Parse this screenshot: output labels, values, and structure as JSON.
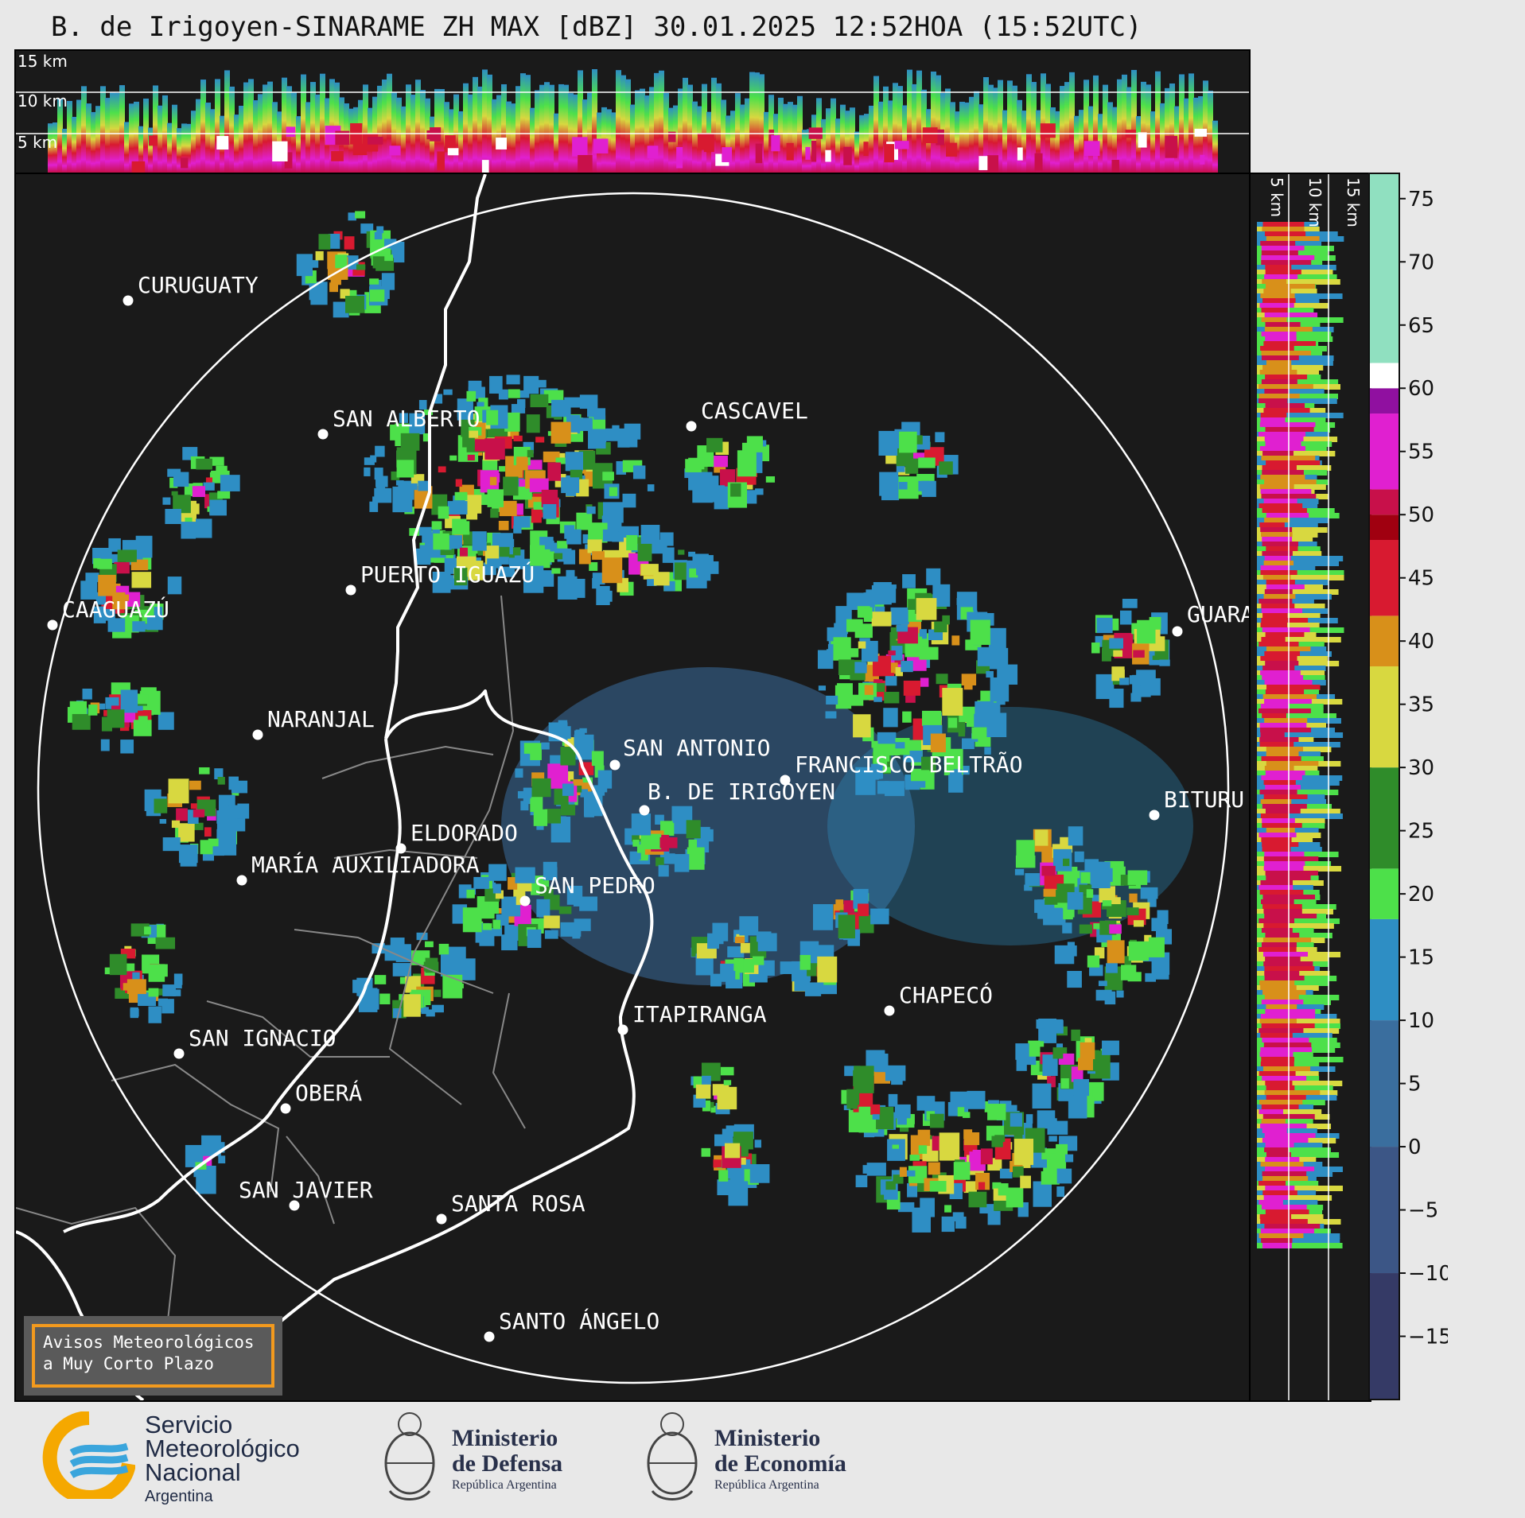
{
  "title": "B. de Irigoyen-SINARAME ZH MAX [dBZ] 30.01.2025 12:52HOA (15:52UTC)",
  "top_panel": {
    "height_labels": [
      "15 km",
      "10 km",
      "5 km"
    ]
  },
  "side_panel": {
    "height_labels": [
      "5 km",
      "10 km",
      "15 km"
    ]
  },
  "cities": [
    {
      "name": "CURUGUATY"
    },
    {
      "name": "SAN ALBERTO"
    },
    {
      "name": "CASCAVEL"
    },
    {
      "name": "CAAGUAZÚ"
    },
    {
      "name": "PUERTO IGUAZÚ"
    },
    {
      "name": "GUARA"
    },
    {
      "name": "NARANJAL"
    },
    {
      "name": "SAN ANTONIO"
    },
    {
      "name": "FRANCISCO BELTRÃO"
    },
    {
      "name": "B. DE IRIGOYEN"
    },
    {
      "name": "BITURU"
    },
    {
      "name": "ELDORADO"
    },
    {
      "name": "MARÍA AUXILIADORA"
    },
    {
      "name": "SAN PEDRO"
    },
    {
      "name": "CHAPECÓ"
    },
    {
      "name": "ITAPIRANGA"
    },
    {
      "name": "SAN IGNACIO"
    },
    {
      "name": "OBERÁ"
    },
    {
      "name": "SAN JAVIER"
    },
    {
      "name": "SANTA ROSA"
    },
    {
      "name": "SANTO ÁNGELO"
    }
  ],
  "colorbar": {
    "unit": "dBZ",
    "min": -20,
    "max": 77,
    "ticks": [
      "75",
      "70",
      "65",
      "60",
      "55",
      "50",
      "45",
      "40",
      "35",
      "30",
      "25",
      "20",
      "15",
      "10",
      "5",
      "0",
      "−5",
      "−10",
      "−15"
    ],
    "tick_values": [
      75,
      70,
      65,
      60,
      55,
      50,
      45,
      40,
      35,
      30,
      25,
      20,
      15,
      10,
      5,
      0,
      -5,
      -10,
      -15
    ],
    "stops": [
      {
        "from": -20,
        "to": -10,
        "color": "#353a66"
      },
      {
        "from": -10,
        "to": 0,
        "color": "#3c5686"
      },
      {
        "from": 0,
        "to": 10,
        "color": "#3a6e9e"
      },
      {
        "from": 10,
        "to": 18,
        "color": "#2e8ec4"
      },
      {
        "from": 18,
        "to": 22,
        "color": "#4de04a"
      },
      {
        "from": 22,
        "to": 30,
        "color": "#2f8c2a"
      },
      {
        "from": 30,
        "to": 38,
        "color": "#d8d840"
      },
      {
        "from": 38,
        "to": 42,
        "color": "#d8901a"
      },
      {
        "from": 42,
        "to": 48,
        "color": "#d81a30"
      },
      {
        "from": 48,
        "to": 50,
        "color": "#a00010"
      },
      {
        "from": 50,
        "to": 52,
        "color": "#c8104a"
      },
      {
        "from": 52,
        "to": 58,
        "color": "#e020d0"
      },
      {
        "from": 58,
        "to": 60,
        "color": "#9010a0"
      },
      {
        "from": 60,
        "to": 62,
        "color": "#ffffff"
      },
      {
        "from": 62,
        "to": 77,
        "color": "#90e0c0"
      }
    ]
  },
  "warning": {
    "line1": "Avisos Meteorológicos",
    "line2": "a Muy Corto Plazo"
  },
  "logos": {
    "smn": {
      "line1": "Servicio",
      "line2": "Meteorológico",
      "line3": "Nacional",
      "line4": "Argentina"
    },
    "defensa": {
      "line1": "Ministerio",
      "line2": "de Defensa",
      "line3": "República Argentina"
    },
    "economia": {
      "line1": "Ministerio",
      "line2": "de Economía",
      "line3": "República Argentina"
    }
  }
}
